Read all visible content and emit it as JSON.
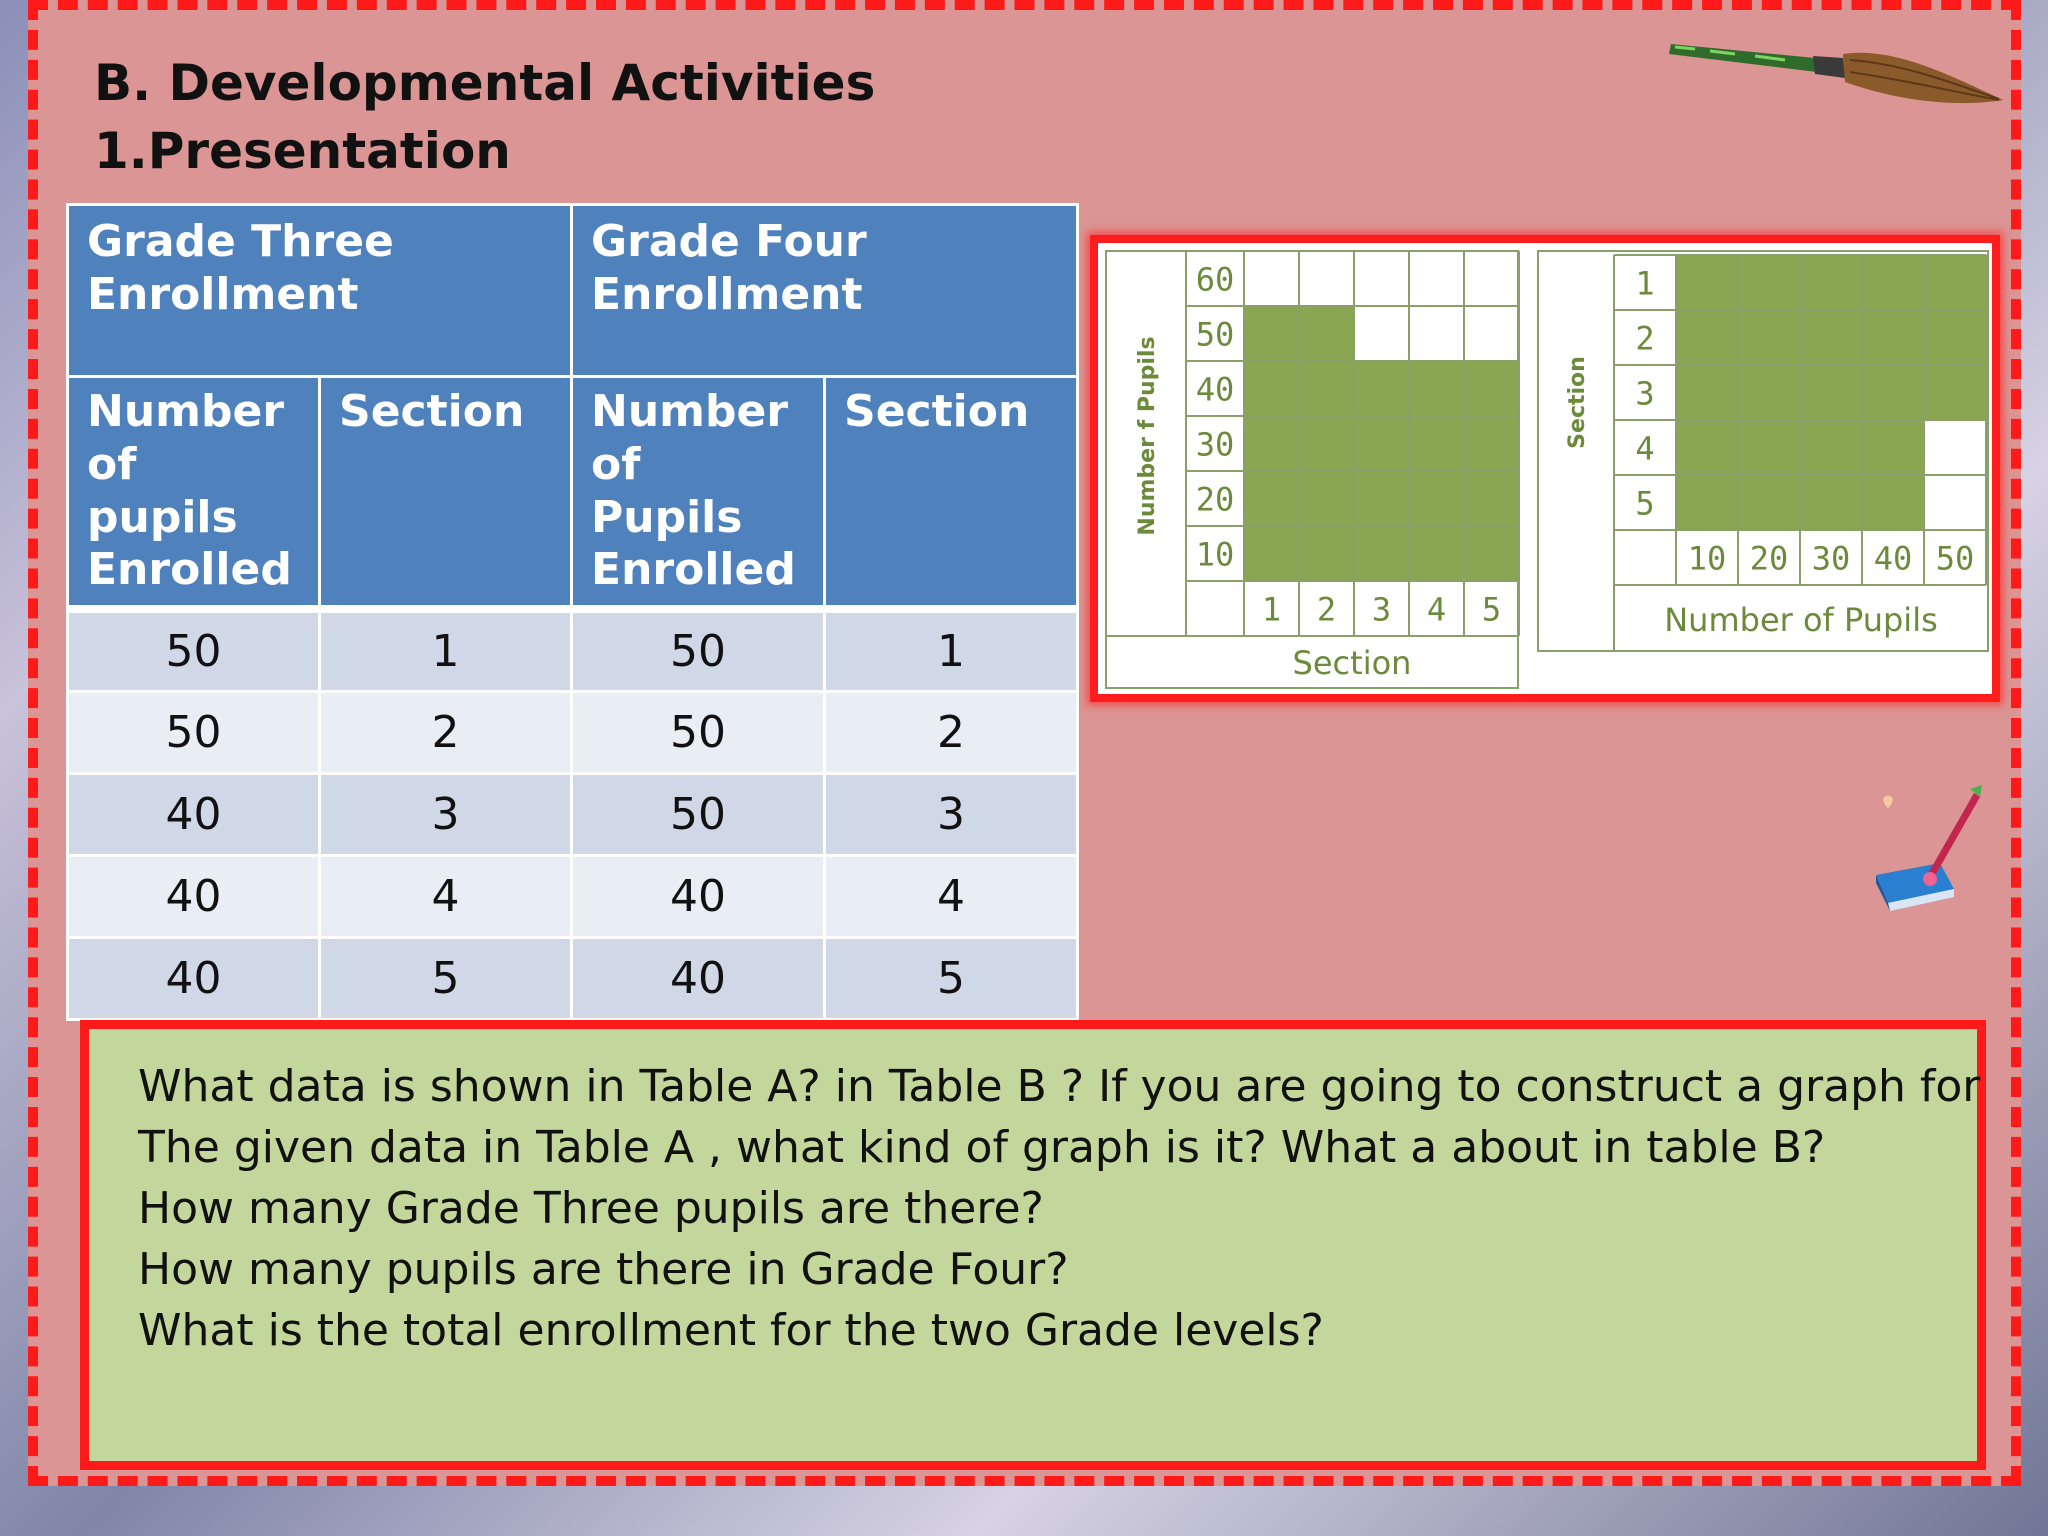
{
  "slide": {
    "heading_line1": "B. Developmental Activities",
    "heading_line2": "1.Presentation"
  },
  "table": {
    "group_headers": [
      "Grade Three Enrollment",
      "Grade Four Enrollment"
    ],
    "sub_headers": [
      "Number of pupils Enrolled",
      "Section",
      "Number of Pupils Enrolled",
      "Section"
    ],
    "rows": [
      [
        "50",
        "1",
        "50",
        "1"
      ],
      [
        "50",
        "2",
        "50",
        "2"
      ],
      [
        "40",
        "3",
        "50",
        "3"
      ],
      [
        "40",
        "4",
        "40",
        "4"
      ],
      [
        "40",
        "5",
        "40",
        "5"
      ]
    ]
  },
  "chart_data": [
    {
      "type": "bar",
      "orientation": "vertical",
      "categories": [
        "1",
        "2",
        "3",
        "4",
        "5"
      ],
      "values": [
        50,
        50,
        40,
        40,
        40
      ],
      "xlabel": "Section",
      "ylabel": "Number f Pupils",
      "yticks": [
        "10",
        "20",
        "30",
        "40",
        "50",
        "60"
      ],
      "ylim": [
        0,
        60
      ],
      "grid": true,
      "bar_color": "#8aa653"
    },
    {
      "type": "bar",
      "orientation": "horizontal",
      "categories": [
        "1",
        "2",
        "3",
        "4",
        "5"
      ],
      "values": [
        50,
        50,
        50,
        40,
        40
      ],
      "xlabel": "Number of Pupils",
      "ylabel": "Section",
      "xticks": [
        "10",
        "20",
        "30",
        "40",
        "50"
      ],
      "xlim": [
        0,
        50
      ],
      "grid": true,
      "bar_color": "#8aa653"
    }
  ],
  "questions": [
    "What data is shown in Table A? in Table B ? If you are going to construct a graph for",
    "The given data in Table A , what kind of graph is it? What a about in table B?",
    "How many Grade Three pupils are there?",
    "How many pupils are there in Grade Four?",
    "What is the total enrollment for the two Grade levels?"
  ],
  "colors": {
    "slide_bg": "#db9594",
    "border": "#ff1a1a",
    "table_header": "#4f81bd",
    "row_a": "#d0d8e8",
    "row_b": "#e9edf4",
    "question_bg": "#c3d69b"
  },
  "decorations": [
    "paintbrush-icon",
    "book-with-pen-icon"
  ]
}
